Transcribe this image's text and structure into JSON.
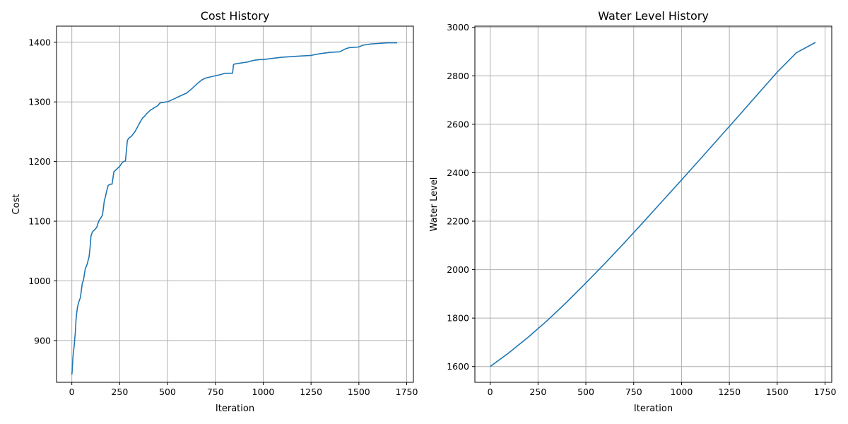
{
  "chart_data": [
    {
      "type": "line",
      "title": "Cost History",
      "xlabel": "Iteration",
      "ylabel": "Cost",
      "xlim": [
        -80,
        1785
      ],
      "ylim": [
        830,
        1427
      ],
      "xticks": [
        0,
        250,
        500,
        750,
        1000,
        1250,
        1500,
        1750
      ],
      "yticks": [
        900,
        1000,
        1100,
        1200,
        1300,
        1400
      ],
      "grid": true,
      "line_color": "#1f77b4",
      "series": [
        {
          "x": [
            0,
            2,
            5,
            8,
            12,
            15,
            18,
            22,
            25,
            30,
            35,
            40,
            45,
            50,
            55,
            60,
            65,
            70,
            75,
            80,
            90,
            95,
            100,
            105,
            110,
            120,
            130,
            140,
            150,
            160,
            170,
            175,
            180,
            190,
            200,
            210,
            220,
            230,
            240,
            250,
            260,
            270,
            280,
            290,
            295,
            300,
            310,
            320,
            330,
            340,
            350,
            360,
            370,
            380,
            390,
            400,
            410,
            420,
            430,
            440,
            450,
            460,
            470,
            480,
            490,
            500,
            520,
            540,
            560,
            580,
            600,
            620,
            640,
            660,
            680,
            700,
            740,
            780,
            800,
            820,
            840,
            845,
            860,
            880,
            900,
            920,
            940,
            960,
            980,
            1000,
            1050,
            1100,
            1150,
            1200,
            1250,
            1300,
            1350,
            1400,
            1430,
            1450,
            1500,
            1520,
            1560,
            1600,
            1650,
            1700
          ],
          "y": [
            843,
            850,
            868,
            880,
            890,
            902,
            912,
            935,
            945,
            957,
            963,
            968,
            972,
            985,
            997,
            1000,
            1010,
            1020,
            1024,
            1028,
            1040,
            1055,
            1075,
            1080,
            1083,
            1086,
            1090,
            1100,
            1105,
            1110,
            1135,
            1140,
            1148,
            1160,
            1162,
            1162,
            1183,
            1186,
            1189,
            1192,
            1197,
            1200,
            1201,
            1235,
            1238,
            1240,
            1242,
            1246,
            1250,
            1256,
            1262,
            1268,
            1273,
            1276,
            1280,
            1283,
            1286,
            1288,
            1290,
            1292,
            1294,
            1298,
            1299,
            1299,
            1300,
            1300,
            1303,
            1306,
            1309,
            1312,
            1315,
            1320,
            1326,
            1332,
            1337,
            1340,
            1343,
            1346,
            1348,
            1348,
            1348,
            1363,
            1364,
            1365,
            1366,
            1367,
            1369,
            1370,
            1371,
            1371,
            1373,
            1375,
            1376,
            1377,
            1378,
            1381,
            1383,
            1384,
            1389,
            1391,
            1392,
            1395,
            1397,
            1398,
            1399,
            1399
          ]
        }
      ]
    },
    {
      "type": "line",
      "title": "Water Level History",
      "xlabel": "Iteration",
      "ylabel": "Water Level",
      "xlim": [
        -80,
        1785
      ],
      "ylim": [
        1535,
        3005
      ],
      "xticks": [
        0,
        250,
        500,
        750,
        1000,
        1250,
        1500,
        1750
      ],
      "yticks": [
        1600,
        1800,
        2000,
        2200,
        2400,
        2600,
        2800,
        3000
      ],
      "grid": true,
      "line_color": "#1f77b4",
      "series": [
        {
          "x": [
            0,
            100,
            200,
            300,
            400,
            500,
            600,
            700,
            800,
            900,
            1000,
            1100,
            1200,
            1300,
            1400,
            1500,
            1600,
            1700
          ],
          "y": [
            1600,
            1658,
            1722,
            1791,
            1866,
            1945,
            2026,
            2110,
            2196,
            2283,
            2370,
            2458,
            2547,
            2636,
            2726,
            2815,
            2895,
            2938
          ]
        }
      ]
    }
  ]
}
